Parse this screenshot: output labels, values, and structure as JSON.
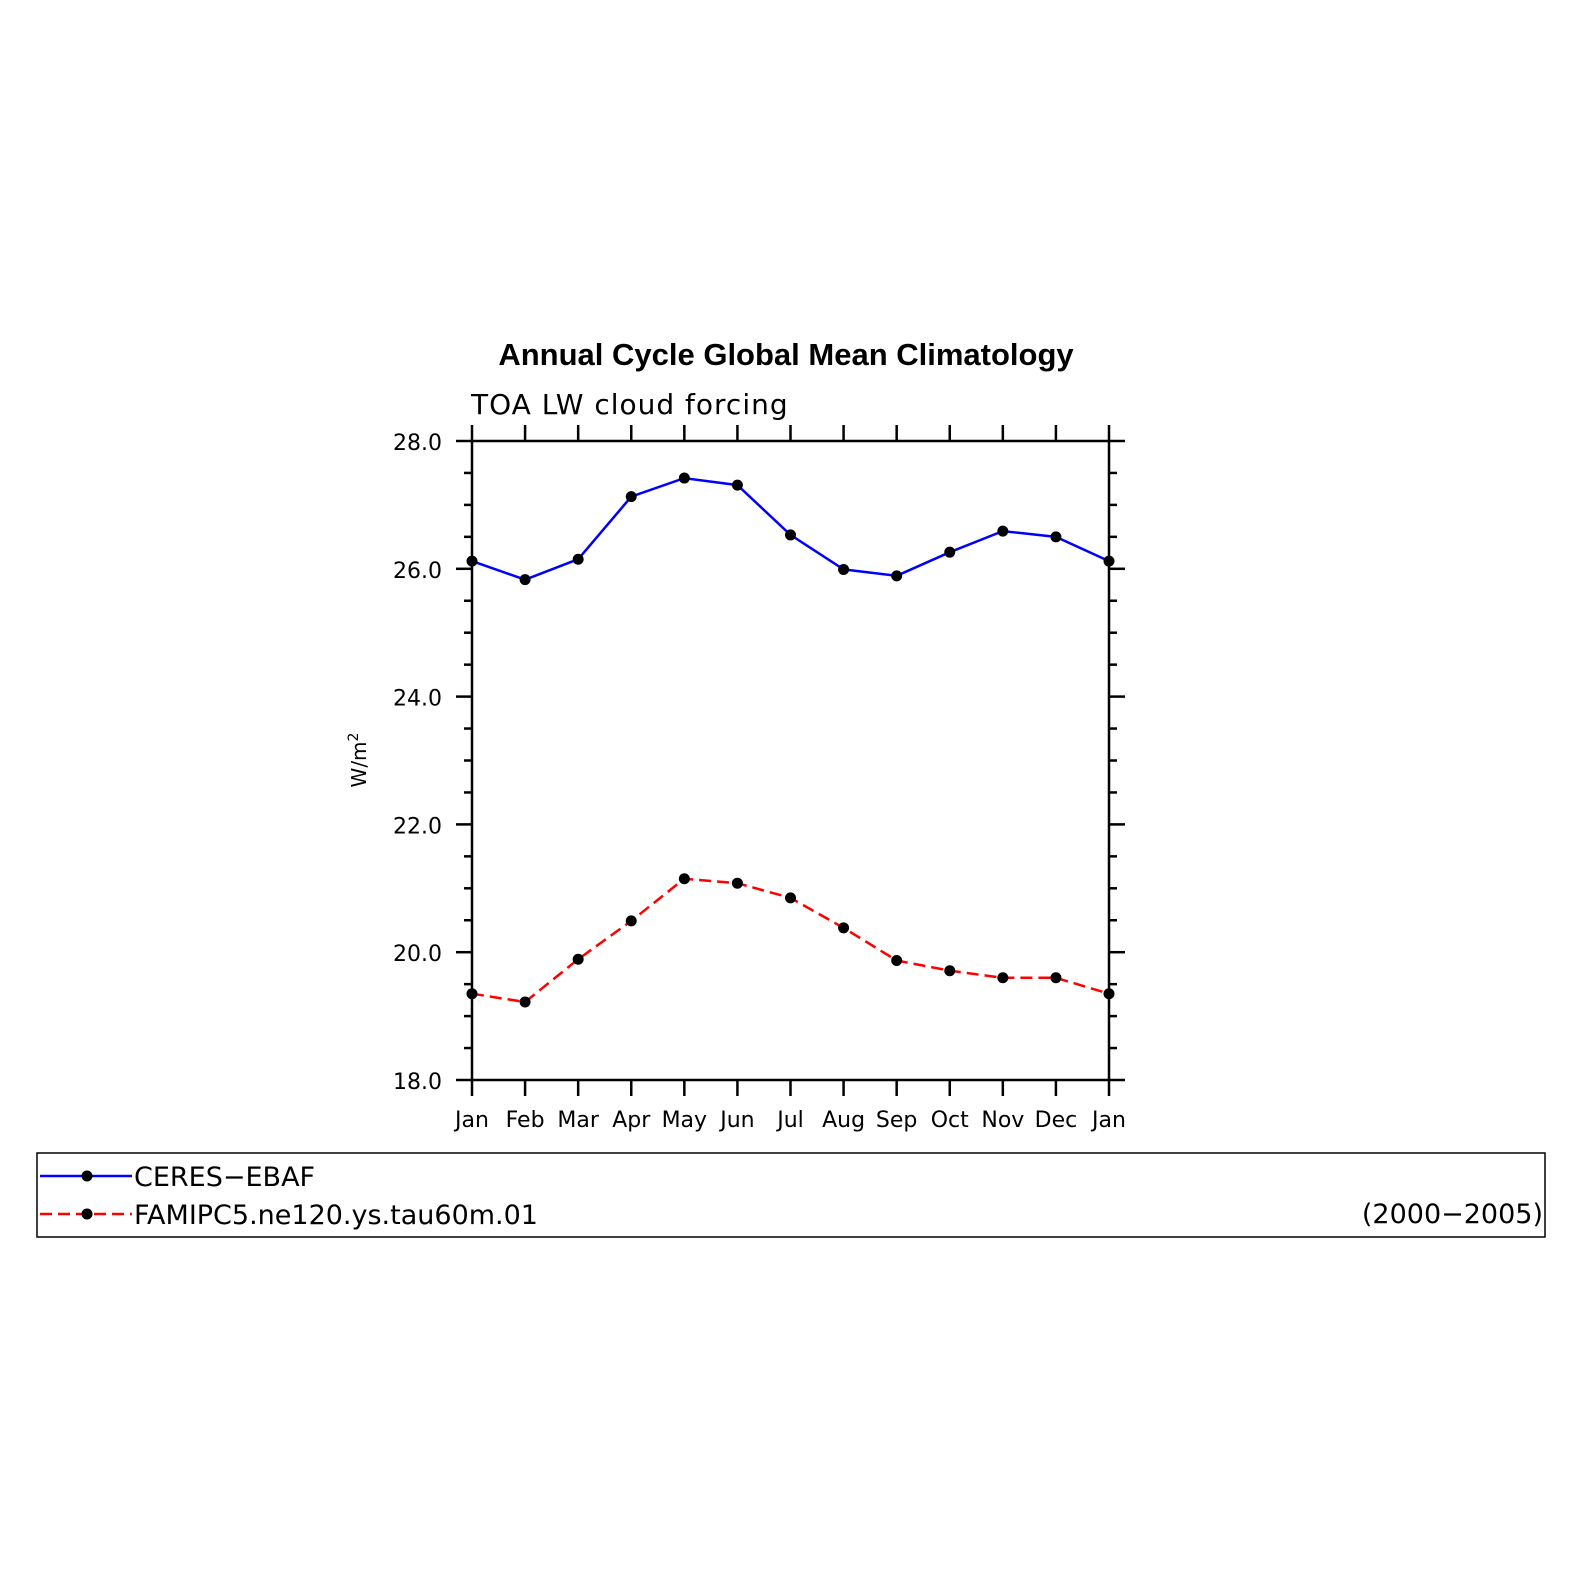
{
  "chart_data": {
    "type": "line",
    "title": "Annual Cycle Global Mean Climatology",
    "subtitle": "TOA LW cloud forcing",
    "ylabel": "W/m",
    "ylabel_superscript": "2",
    "categories": [
      "Jan",
      "Feb",
      "Mar",
      "Apr",
      "May",
      "Jun",
      "Jul",
      "Aug",
      "Sep",
      "Oct",
      "Nov",
      "Dec",
      "Jan"
    ],
    "ylim": [
      18.0,
      28.0
    ],
    "yticks": [
      "18.0",
      "20.0",
      "22.0",
      "24.0",
      "26.0",
      "28.0"
    ],
    "ytick_values": [
      18,
      20,
      22,
      24,
      26,
      28
    ],
    "series": [
      {
        "name": "CERES−EBAF",
        "color": "#0000ff",
        "line_style": "solid",
        "values": [
          26.12,
          25.83,
          26.15,
          27.13,
          27.42,
          27.31,
          26.53,
          25.99,
          25.89,
          26.26,
          26.59,
          26.5,
          26.12
        ]
      },
      {
        "name": "FAMIPC5.ne120.ys.tau60m.01",
        "color": "#ff0000",
        "line_style": "dashed",
        "values": [
          19.35,
          19.22,
          19.89,
          20.49,
          21.15,
          21.08,
          20.85,
          20.38,
          19.87,
          19.71,
          19.6,
          19.6,
          19.35
        ]
      }
    ],
    "marker_color": "#000000",
    "legend_placement": "bottom",
    "legend_note": "(2000−2005)",
    "grid": false
  }
}
